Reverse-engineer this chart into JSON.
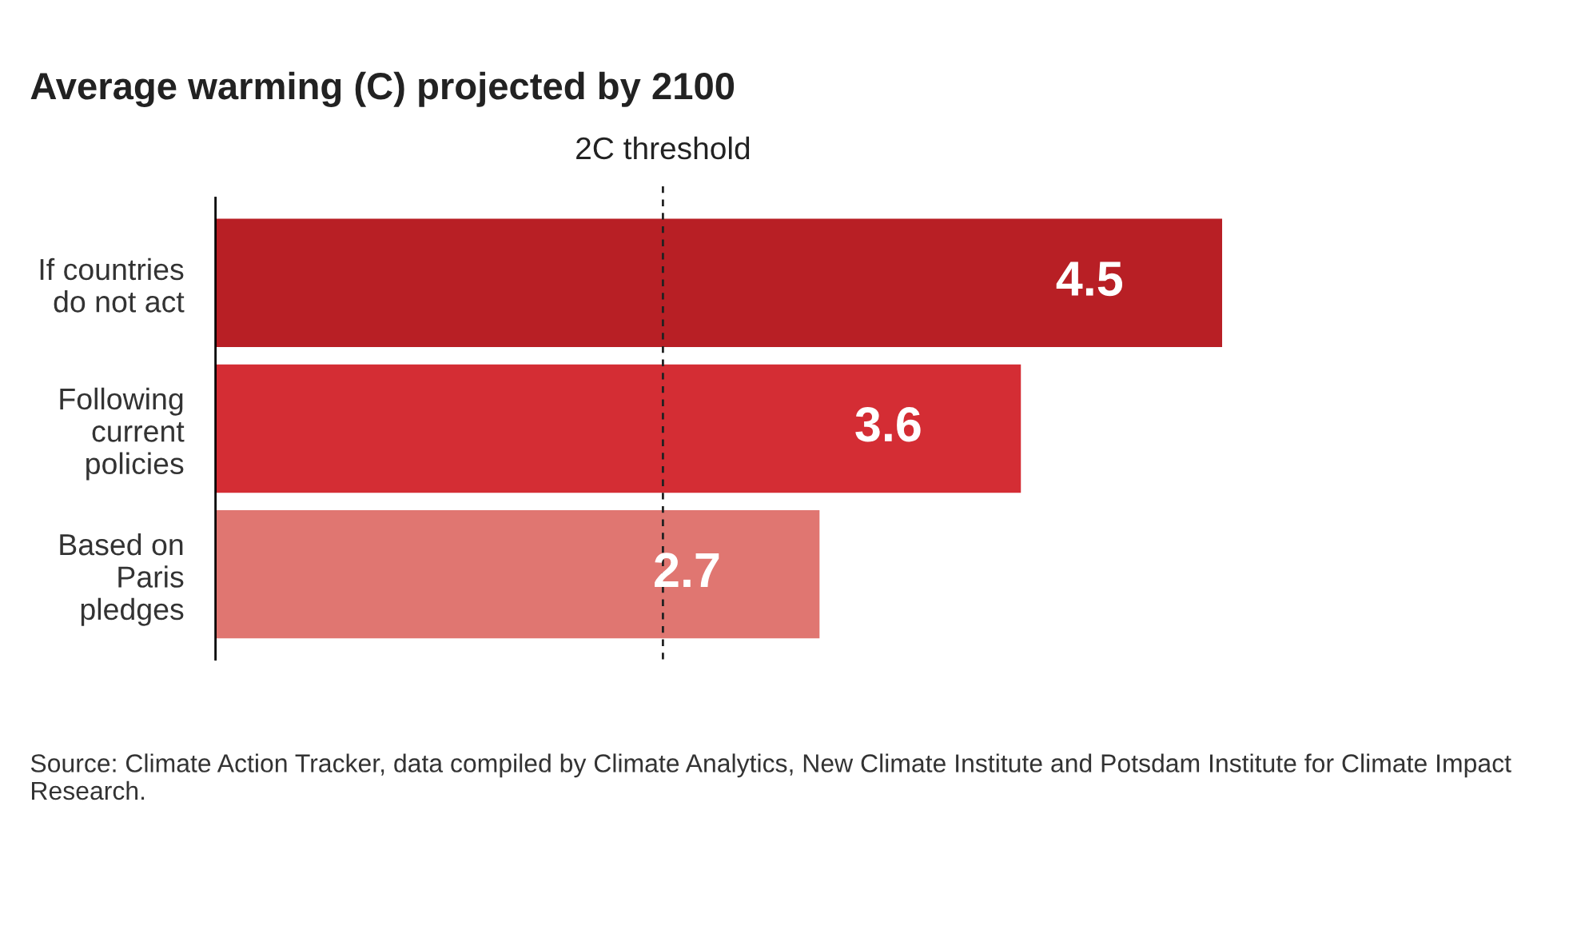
{
  "chart_data": {
    "type": "bar",
    "orientation": "horizontal",
    "title": "Average warming (C) projected by 2100",
    "categories": [
      "If countries\ndo not act",
      "Following\ncurrent\npolicies",
      "Based on\nParis\npledges"
    ],
    "values": [
      4.5,
      3.6,
      2.7
    ],
    "colors": [
      "#b81f25",
      "#d42d34",
      "#e07671"
    ],
    "data_labels": true,
    "grid": false,
    "ref_lines": [
      {
        "axis": "x",
        "value": 2,
        "label": "2C threshold",
        "color": "#222222",
        "line_style": "dashed"
      }
    ],
    "annotations": [
      "Source: Climate Action Tracker, data compiled by Climate Analytics, New Climate Institute and Potsdam Institute for Climate Impact Research."
    ]
  }
}
